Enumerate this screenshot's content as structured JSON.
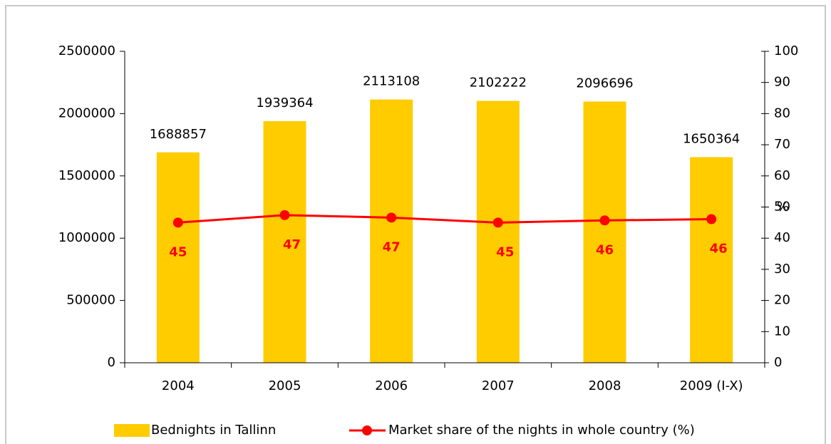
{
  "chart_data": {
    "type": "bar_line",
    "categories": [
      "2004",
      "2005",
      "2006",
      "2007",
      "2008",
      "2009 (I-X)"
    ],
    "series": [
      {
        "name": "Bednights in Tallinn",
        "color": "#ffcc00",
        "type": "bar",
        "values": [
          1688857,
          1939364,
          2113108,
          2102222,
          2096696,
          1650364
        ]
      },
      {
        "name": "Market share of the nights in whole country (%)",
        "color": "#ff0000",
        "type": "line",
        "axis": "y2",
        "values": [
          45,
          47.4,
          46.6,
          45,
          45.7,
          46.1
        ],
        "value_labels": [
          "45",
          "47",
          "47",
          "45",
          "46",
          "46"
        ]
      }
    ],
    "ylim": [
      0,
      2500000
    ],
    "yticks": [
      0,
      500000,
      1000000,
      1500000,
      2000000,
      2500000
    ],
    "y2lim": [
      0,
      100
    ],
    "y2ticks": [
      0,
      10,
      20,
      30,
      40,
      50,
      60,
      70,
      80,
      90,
      100
    ],
    "y2label": "%",
    "legend": "bottom"
  }
}
